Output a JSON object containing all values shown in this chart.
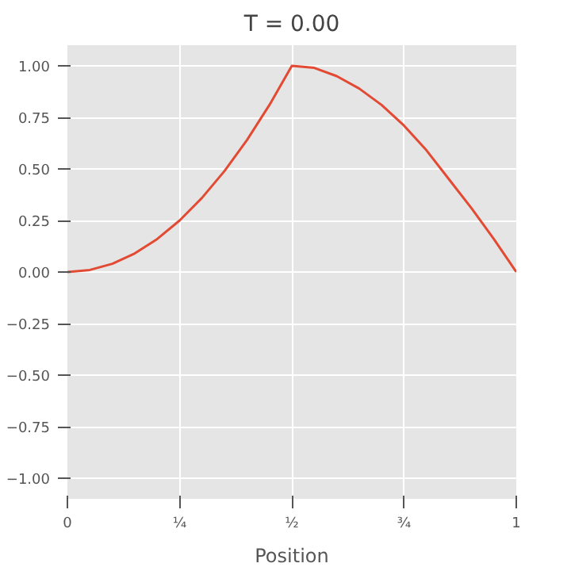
{
  "chart_data": {
    "type": "line",
    "title": "T = 0.00",
    "xlabel": "Position",
    "x": [
      0,
      0.05,
      0.1,
      0.15,
      0.2,
      0.25,
      0.3,
      0.35,
      0.4,
      0.45,
      0.5,
      0.55,
      0.6,
      0.65,
      0.7,
      0.75,
      0.8,
      0.85,
      0.9,
      0.95,
      1
    ],
    "series": [
      {
        "color": "#e24a33",
        "values": [
          0,
          0.01,
          0.04,
          0.09,
          0.16,
          0.25,
          0.36,
          0.49,
          0.64,
          0.81,
          1.0,
          0.99,
          0.95,
          0.89,
          0.81,
          0.71,
          0.59,
          0.45,
          0.31,
          0.16,
          0
        ]
      }
    ],
    "xlim": [
      0,
      1
    ],
    "ylim": [
      -1.1,
      1.1
    ],
    "xticks": [
      0,
      {
        "value": 0.25,
        "label": "¼"
      },
      {
        "value": 0.5,
        "label": "½"
      },
      {
        "value": 0.75,
        "label": "¾"
      },
      1
    ],
    "yticks": [
      {
        "value": -1,
        "label": "−1.00"
      },
      {
        "value": -0.75,
        "label": "−0.75"
      },
      {
        "value": -0.5,
        "label": "−0.50"
      },
      {
        "value": -0.25,
        "label": "−0.25"
      },
      {
        "value": 0,
        "label": "0.00"
      },
      {
        "value": 0.25,
        "label": "0.25"
      },
      {
        "value": 0.5,
        "label": "0.50"
      },
      {
        "value": 0.75,
        "label": "0.75"
      },
      {
        "value": 1,
        "label": "1.00"
      }
    ],
    "grid": true
  }
}
